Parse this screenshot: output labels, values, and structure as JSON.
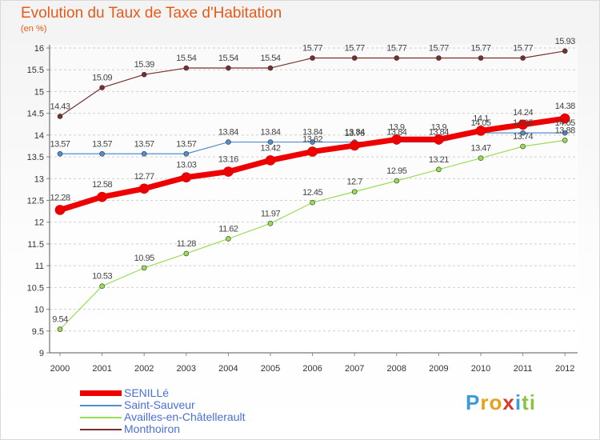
{
  "header": {
    "title": "Evolution du Taux de Taxe d'Habitation",
    "unit": "(en %)"
  },
  "chart_data": {
    "type": "line",
    "x": [
      "2000",
      "2001",
      "2002",
      "2003",
      "2004",
      "2005",
      "2006",
      "2007",
      "2008",
      "2009",
      "2010",
      "2011",
      "2012"
    ],
    "ylim": [
      9,
      16
    ],
    "yticks": [
      "9",
      "9.5",
      "10",
      "10.5",
      "11",
      "11.5",
      "12",
      "12.5",
      "13",
      "13.5",
      "14",
      "14.5",
      "15",
      "15.5",
      "16"
    ],
    "grid": "dashed horizontal",
    "legend_position": "bottom-left",
    "series": [
      {
        "name": "SENILLé",
        "color": "#ee0000",
        "values": [
          12.28,
          12.58,
          12.77,
          13.03,
          13.16,
          13.42,
          13.62,
          13.76,
          13.9,
          13.9,
          14.1,
          14.24,
          14.38
        ],
        "labels": [
          "12.28",
          "12.58",
          "12.77",
          "13.03",
          "13.16",
          "13.42",
          "13.62",
          "13.76",
          "13.9",
          "13.9",
          "14.1",
          "14.24",
          "14.38"
        ]
      },
      {
        "name": "Saint-Sauveur",
        "color": "#4f8fcf",
        "values": [
          13.57,
          13.57,
          13.57,
          13.57,
          13.84,
          13.84,
          13.84,
          13.84,
          13.84,
          13.84,
          14.05,
          14.05,
          14.05
        ],
        "labels": [
          "13.57",
          "13.57",
          "13.57",
          "13.57",
          "13.84",
          "13.84",
          "13.84",
          "13.84",
          "13.84",
          "13.84",
          "14.05",
          "14.05",
          "14.05"
        ]
      },
      {
        "name": "Availles-en-Châtellerault",
        "color": "#99dd55",
        "values": [
          9.54,
          10.53,
          10.95,
          11.28,
          11.62,
          11.97,
          12.45,
          12.7,
          12.95,
          13.21,
          13.47,
          13.74,
          13.88
        ],
        "labels": [
          "9.54",
          "10.53",
          "10.95",
          "11.28",
          "11.62",
          "11.97",
          "12.45",
          "12.7",
          "12.95",
          "13.21",
          "13.47",
          "13.74",
          "13.88"
        ]
      },
      {
        "name": "Monthoiron",
        "color": "#7a2e2e",
        "values": [
          14.43,
          15.09,
          15.39,
          15.54,
          15.54,
          15.54,
          15.77,
          15.77,
          15.77,
          15.77,
          15.77,
          15.77,
          15.93
        ],
        "labels": [
          "14.43",
          "15.09",
          "15.39",
          "15.54",
          "15.54",
          "15.54",
          "15.77",
          "15.77",
          "15.77",
          "15.77",
          "15.77",
          "15.77",
          "15.93"
        ]
      }
    ]
  },
  "brand": {
    "letters": [
      "P",
      "r",
      "o",
      "x",
      "i",
      "t",
      "i"
    ],
    "colors": [
      "#3b9ad9",
      "#e8a21a",
      "#e8a21a",
      "#d63a2a",
      "#3b9ad9",
      "#8bc43f",
      "#8bc43f"
    ]
  }
}
